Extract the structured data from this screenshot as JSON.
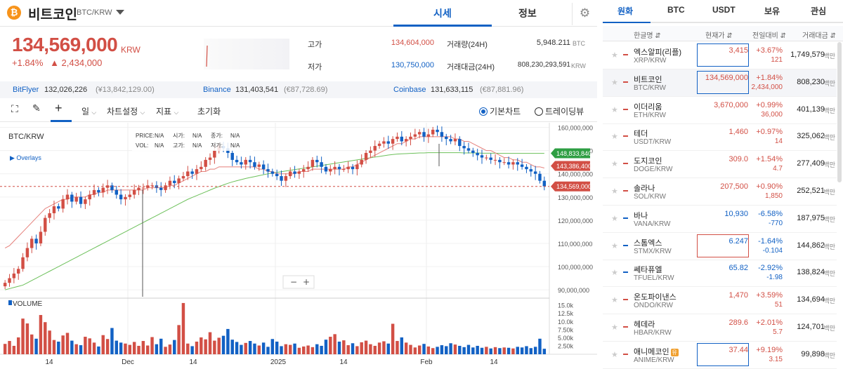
{
  "coin": {
    "icon": "bitcoin-icon",
    "name": "비트코인",
    "pair": "BTC/KRW"
  },
  "tabs": {
    "market": "시세",
    "info": "정보"
  },
  "price": {
    "current": "134,569,000",
    "unit": "KRW",
    "change_pct": "+1.84%",
    "change_abs": "▲ 2,434,000",
    "high_label": "고가",
    "high": "134,604,000",
    "low_label": "저가",
    "low": "130,750,000",
    "vol_label": "거래량(24H)",
    "vol": "5,948.211",
    "vol_unit": "BTC",
    "amt_label": "거래대금(24H)",
    "amt": "808,230,293,591",
    "amt_unit": "KRW"
  },
  "exchanges": [
    {
      "name": "BitFlyer",
      "price": "132,026,226",
      "sub": "(¥13,842,129.00)"
    },
    {
      "name": "Binance",
      "price": "131,403,541",
      "sub": "(€87,728.69)"
    },
    {
      "name": "Coinbase",
      "price": "131,633,115",
      "sub": "(€87,881.96)"
    }
  ],
  "toolbar": {
    "period": "일",
    "chart_settings": "차트설정",
    "indicators": "지표",
    "reset": "초기화",
    "basic_chart": "기본차트",
    "trading_view": "트레이딩뷰"
  },
  "chart_data": {
    "type": "candlestick",
    "title": "BTC/KRW",
    "overlays_label": "▶ Overlays",
    "info_labels": {
      "price": "PRICE:",
      "vol": "VOL:",
      "open": "시가:",
      "high": "고가:",
      "close": "종가:",
      "low": "저가:",
      "na": "N/A"
    },
    "y_ticks": [
      "160,000,000",
      "150,000,000",
      "140,000,000",
      "130,000,000",
      "120,000,000",
      "110,000,000",
      "100,000,000",
      "90,000,000"
    ],
    "y_min": 87000000,
    "y_max": 162000000,
    "vol_ticks": [
      "15.0k",
      "12.5k",
      "10.0k",
      "7.50k",
      "5.00k",
      "2.50k"
    ],
    "vol_max": 16000,
    "x_ticks": [
      "14",
      "Dec",
      "14",
      "2025",
      "14",
      "Feb",
      "14"
    ],
    "volume_label": "VOLUME",
    "price_tags": [
      {
        "value": "148,833,840",
        "color": "#2e9e43"
      },
      {
        "value": "143,386,400",
        "color": "#d24f45"
      },
      {
        "value": "134,569,000",
        "color": "#d24f45"
      }
    ],
    "zoom": {
      "minus": "−",
      "plus": "+"
    },
    "closes": [
      93,
      95,
      97,
      99,
      104,
      108,
      112,
      110,
      115,
      121,
      123,
      126,
      125,
      129,
      131,
      128,
      130,
      127,
      129,
      131,
      133,
      132,
      134,
      135,
      133,
      131,
      129,
      130,
      131,
      133,
      134,
      134,
      135,
      135,
      134,
      133,
      135,
      137,
      136,
      138,
      139,
      141,
      140,
      142,
      143,
      146,
      147,
      150,
      152,
      151,
      149,
      146,
      145,
      144,
      146,
      145,
      143,
      144,
      142,
      141,
      140,
      139,
      137,
      139,
      141,
      140,
      141,
      142,
      143,
      146,
      145,
      143,
      141,
      142,
      143,
      142,
      142,
      143,
      142,
      144,
      146,
      149,
      150,
      152,
      153,
      154,
      153,
      155,
      156,
      154,
      155,
      156,
      157,
      158,
      156,
      157,
      159,
      158,
      156,
      155,
      154,
      155,
      152,
      151,
      150,
      149,
      148,
      147,
      147,
      146,
      146,
      145,
      145,
      144,
      145,
      144,
      143,
      142,
      141,
      140,
      137,
      134.6
    ],
    "volumes": [
      3200,
      4100,
      2600,
      5200,
      11000,
      9500,
      6100,
      4800,
      12100,
      9900,
      7300,
      4400,
      3900,
      5800,
      6600,
      4200,
      3100,
      2800,
      5400,
      4900,
      3600,
      2400,
      5900,
      4700,
      8100,
      4200,
      3600,
      3300,
      2900,
      3800,
      2600,
      4100,
      2700,
      5300,
      3100,
      4800,
      2300,
      3000,
      4400,
      9000,
      15800,
      3300,
      2500,
      3900,
      5200,
      4600,
      6800,
      4200,
      5100,
      5700,
      7800,
      4500,
      3800,
      2900,
      3500,
      4100,
      3300,
      2700,
      3600,
      2300,
      4700,
      3900,
      2500,
      3100,
      2900,
      3300,
      2000,
      2400,
      2700,
      2200,
      3100,
      2600,
      4500,
      5400,
      6200,
      3900,
      4300,
      2800,
      3400,
      2500,
      3700,
      4200,
      3100,
      2600,
      3600,
      4000,
      3300,
      9400,
      4100,
      5200,
      3600,
      2900,
      2100,
      2700,
      3200,
      2400,
      1900,
      2300,
      2800,
      2500,
      3400,
      3000,
      2600,
      2200,
      2900,
      2100,
      2600,
      2000,
      2300,
      1800,
      2200,
      1900,
      2100,
      2000,
      1800,
      2300,
      2100,
      2500,
      1900,
      2300,
      4800,
      1700
    ],
    "ma_short": [
      108,
      109,
      111,
      113,
      115,
      117,
      119,
      121,
      123,
      125,
      126,
      127,
      128,
      129,
      129,
      130,
      130,
      130,
      130,
      131,
      131,
      132,
      132,
      133,
      133,
      133,
      133,
      133,
      133,
      133,
      133,
      133,
      134,
      134,
      134,
      134,
      134,
      135,
      135,
      136,
      137,
      138,
      139,
      140,
      141,
      141,
      142,
      142,
      143,
      143,
      143,
      143,
      143,
      143,
      143,
      143,
      143,
      142,
      142,
      141,
      141,
      140,
      140,
      140,
      140,
      140,
      141,
      141,
      141,
      142,
      142,
      142,
      142,
      142,
      142,
      142,
      142,
      143,
      143,
      144,
      145,
      146,
      147,
      148,
      149,
      150,
      151,
      152,
      153,
      153,
      154,
      155,
      155,
      156,
      156,
      156,
      156,
      156,
      156,
      156,
      156,
      155,
      155,
      154,
      154,
      153,
      152,
      151,
      150,
      150,
      149,
      148,
      147,
      147,
      146,
      146,
      145,
      145,
      144,
      143,
      143,
      142.5
    ],
    "ma_long": [
      90,
      90.5,
      91,
      91.5,
      92,
      93,
      94,
      95,
      96,
      97,
      98,
      99,
      100,
      101,
      102,
      103,
      104,
      105,
      106,
      107,
      108,
      109,
      110,
      111,
      112,
      113,
      114,
      115,
      116,
      117,
      118,
      119,
      120,
      121,
      122,
      123,
      124,
      125,
      126,
      127,
      128,
      129,
      129.8,
      130.6,
      131.4,
      132.2,
      133,
      133.8,
      134.5,
      135.2,
      135.9,
      136.5,
      137,
      137.5,
      138,
      138.4,
      138.8,
      139.2,
      139.6,
      140,
      140.3,
      140.6,
      140.9,
      141.2,
      141.5,
      141.8,
      142.1,
      142.4,
      142.7,
      143,
      143.3,
      143.6,
      143.9,
      144.2,
      144.5,
      144.8,
      145.1,
      145.4,
      145.7,
      146,
      146.3,
      146.6,
      146.9,
      147.2,
      147.5,
      147.8,
      148.1,
      148.3,
      148.5,
      148.6,
      148.7,
      148.8,
      148.9,
      149,
      149,
      149.1,
      149.1,
      149.1,
      149.1,
      149.1,
      149.1,
      149.1,
      149.1,
      149,
      149,
      149,
      149,
      148.9,
      148.9,
      148.9,
      148.9,
      148.8,
      148.8,
      148.8,
      148.8,
      148.8,
      148.8,
      148.8,
      148.8,
      148.8,
      148.8,
      148.8
    ]
  },
  "list": {
    "tabs": [
      "원화",
      "BTC",
      "USDT",
      "보유",
      "관심"
    ],
    "headers": {
      "name": "한글명 ⇵",
      "price": "현재가 ⇵",
      "change": "전일대비 ⇵",
      "volume": "거래대금 ⇵"
    },
    "vol_unit": "백만",
    "rows": [
      {
        "name": "엑스알피(리플)",
        "sym": "XRP/KRW",
        "price": "3,415",
        "pct": "+3.67%",
        "abs": "121",
        "vol": "1,749,579",
        "dir": "up",
        "box": "blue"
      },
      {
        "name": "비트코인",
        "sym": "BTC/KRW",
        "price": "134,569,000",
        "pct": "+1.84%",
        "abs": "2,434,000",
        "vol": "808,230",
        "dir": "up",
        "box": "blue",
        "sel": true
      },
      {
        "name": "이더리움",
        "sym": "ETH/KRW",
        "price": "3,670,000",
        "pct": "+0.99%",
        "abs": "36,000",
        "vol": "401,139",
        "dir": "up"
      },
      {
        "name": "테더",
        "sym": "USDT/KRW",
        "price": "1,460",
        "pct": "+0.97%",
        "abs": "14",
        "vol": "325,062",
        "dir": "up"
      },
      {
        "name": "도지코인",
        "sym": "DOGE/KRW",
        "price": "309.0",
        "pct": "+1.54%",
        "abs": "4.7",
        "vol": "277,409",
        "dir": "up"
      },
      {
        "name": "솔라나",
        "sym": "SOL/KRW",
        "price": "207,500",
        "pct": "+0.90%",
        "abs": "1,850",
        "vol": "252,521",
        "dir": "up"
      },
      {
        "name": "바나",
        "sym": "VANA/KRW",
        "price": "10,930",
        "pct": "-6.58%",
        "abs": "-770",
        "vol": "187,975",
        "dir": "down"
      },
      {
        "name": "스톰엑스",
        "sym": "STMX/KRW",
        "price": "6.247",
        "pct": "-1.64%",
        "abs": "-0.104",
        "vol": "144,862",
        "dir": "down",
        "box": "red"
      },
      {
        "name": "쎄타퓨엘",
        "sym": "TFUEL/KRW",
        "price": "65.82",
        "pct": "-2.92%",
        "abs": "-1.98",
        "vol": "138,824",
        "dir": "down"
      },
      {
        "name": "온도파이낸스",
        "sym": "ONDO/KRW",
        "price": "1,470",
        "pct": "+3.59%",
        "abs": "51",
        "vol": "134,694",
        "dir": "up"
      },
      {
        "name": "헤데라",
        "sym": "HBAR/KRW",
        "price": "289.6",
        "pct": "+2.01%",
        "abs": "5.7",
        "vol": "124,701",
        "dir": "up"
      },
      {
        "name": "애니메코인",
        "sym": "ANIME/KRW",
        "price": "37.44",
        "pct": "+9.19%",
        "abs": "3.15",
        "vol": "99,898",
        "dir": "up",
        "box": "blue",
        "badge": "유"
      }
    ]
  }
}
